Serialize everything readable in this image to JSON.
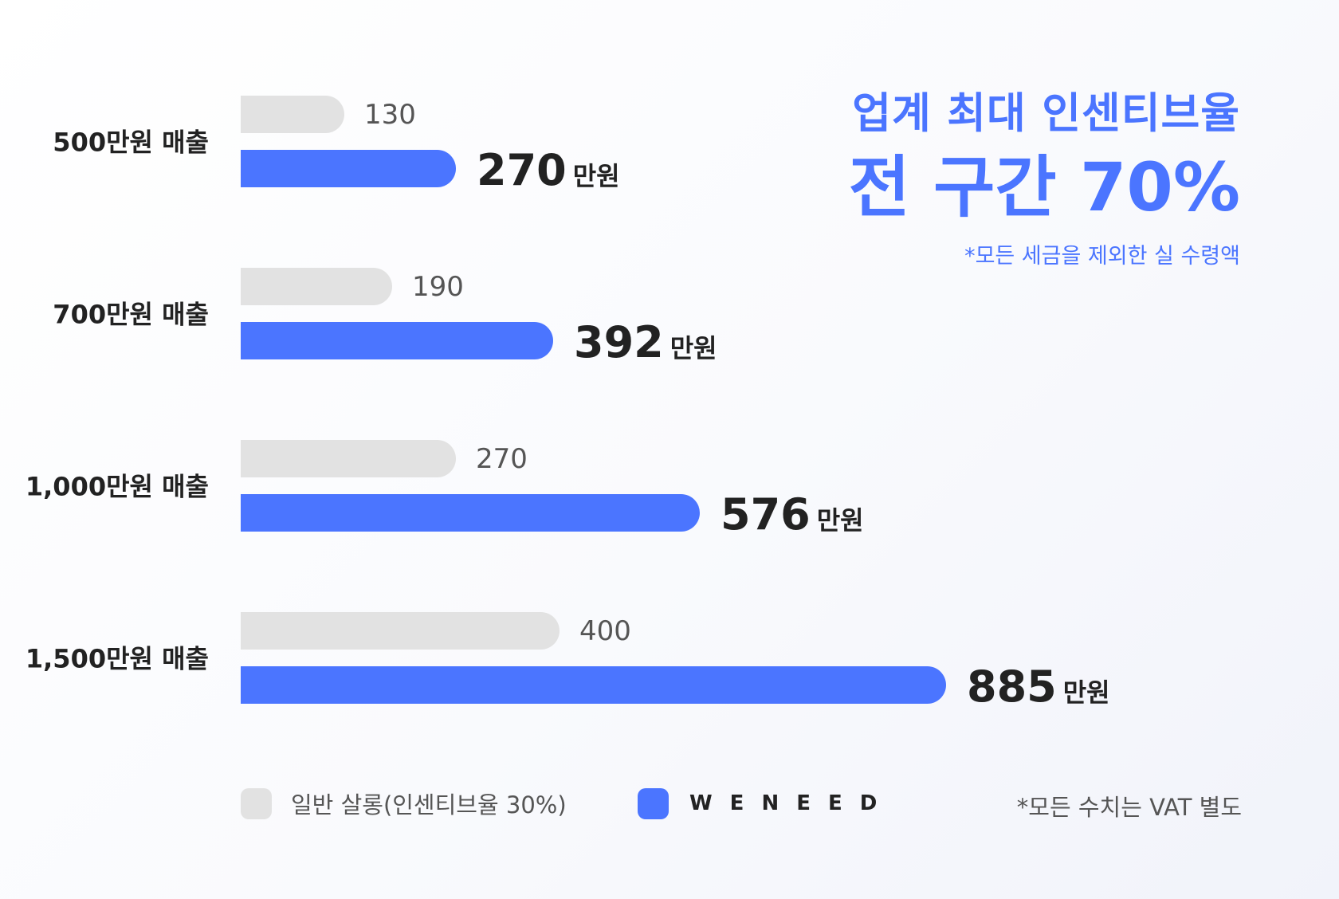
{
  "headline": {
    "line1": "업계 최대 인센티브율",
    "line2": "전 구간 70%",
    "line3": "*모든 세금을 제외한 실 수령액"
  },
  "legend": {
    "general_label": "일반 살롱(인센티브율 30%)",
    "brand_label": "WENEED"
  },
  "footnote": "*모든 수치는 VAT 별도",
  "chart_data": {
    "type": "bar",
    "orientation": "horizontal",
    "categories": [
      "500만원 매출",
      "700만원 매출",
      "1,000만원 매출",
      "1,500만원 매출"
    ],
    "series": [
      {
        "name": "일반 살롱(인센티브율 30%)",
        "values": [
          130,
          190,
          270,
          400
        ],
        "color": "#e2e2e2"
      },
      {
        "name": "WENEED",
        "values": [
          270,
          392,
          576,
          885
        ],
        "color": "#4b75ff",
        "unit": "만원"
      }
    ],
    "title": "",
    "xlabel": "",
    "ylabel": "",
    "grid": false,
    "legend_position": "bottom"
  }
}
